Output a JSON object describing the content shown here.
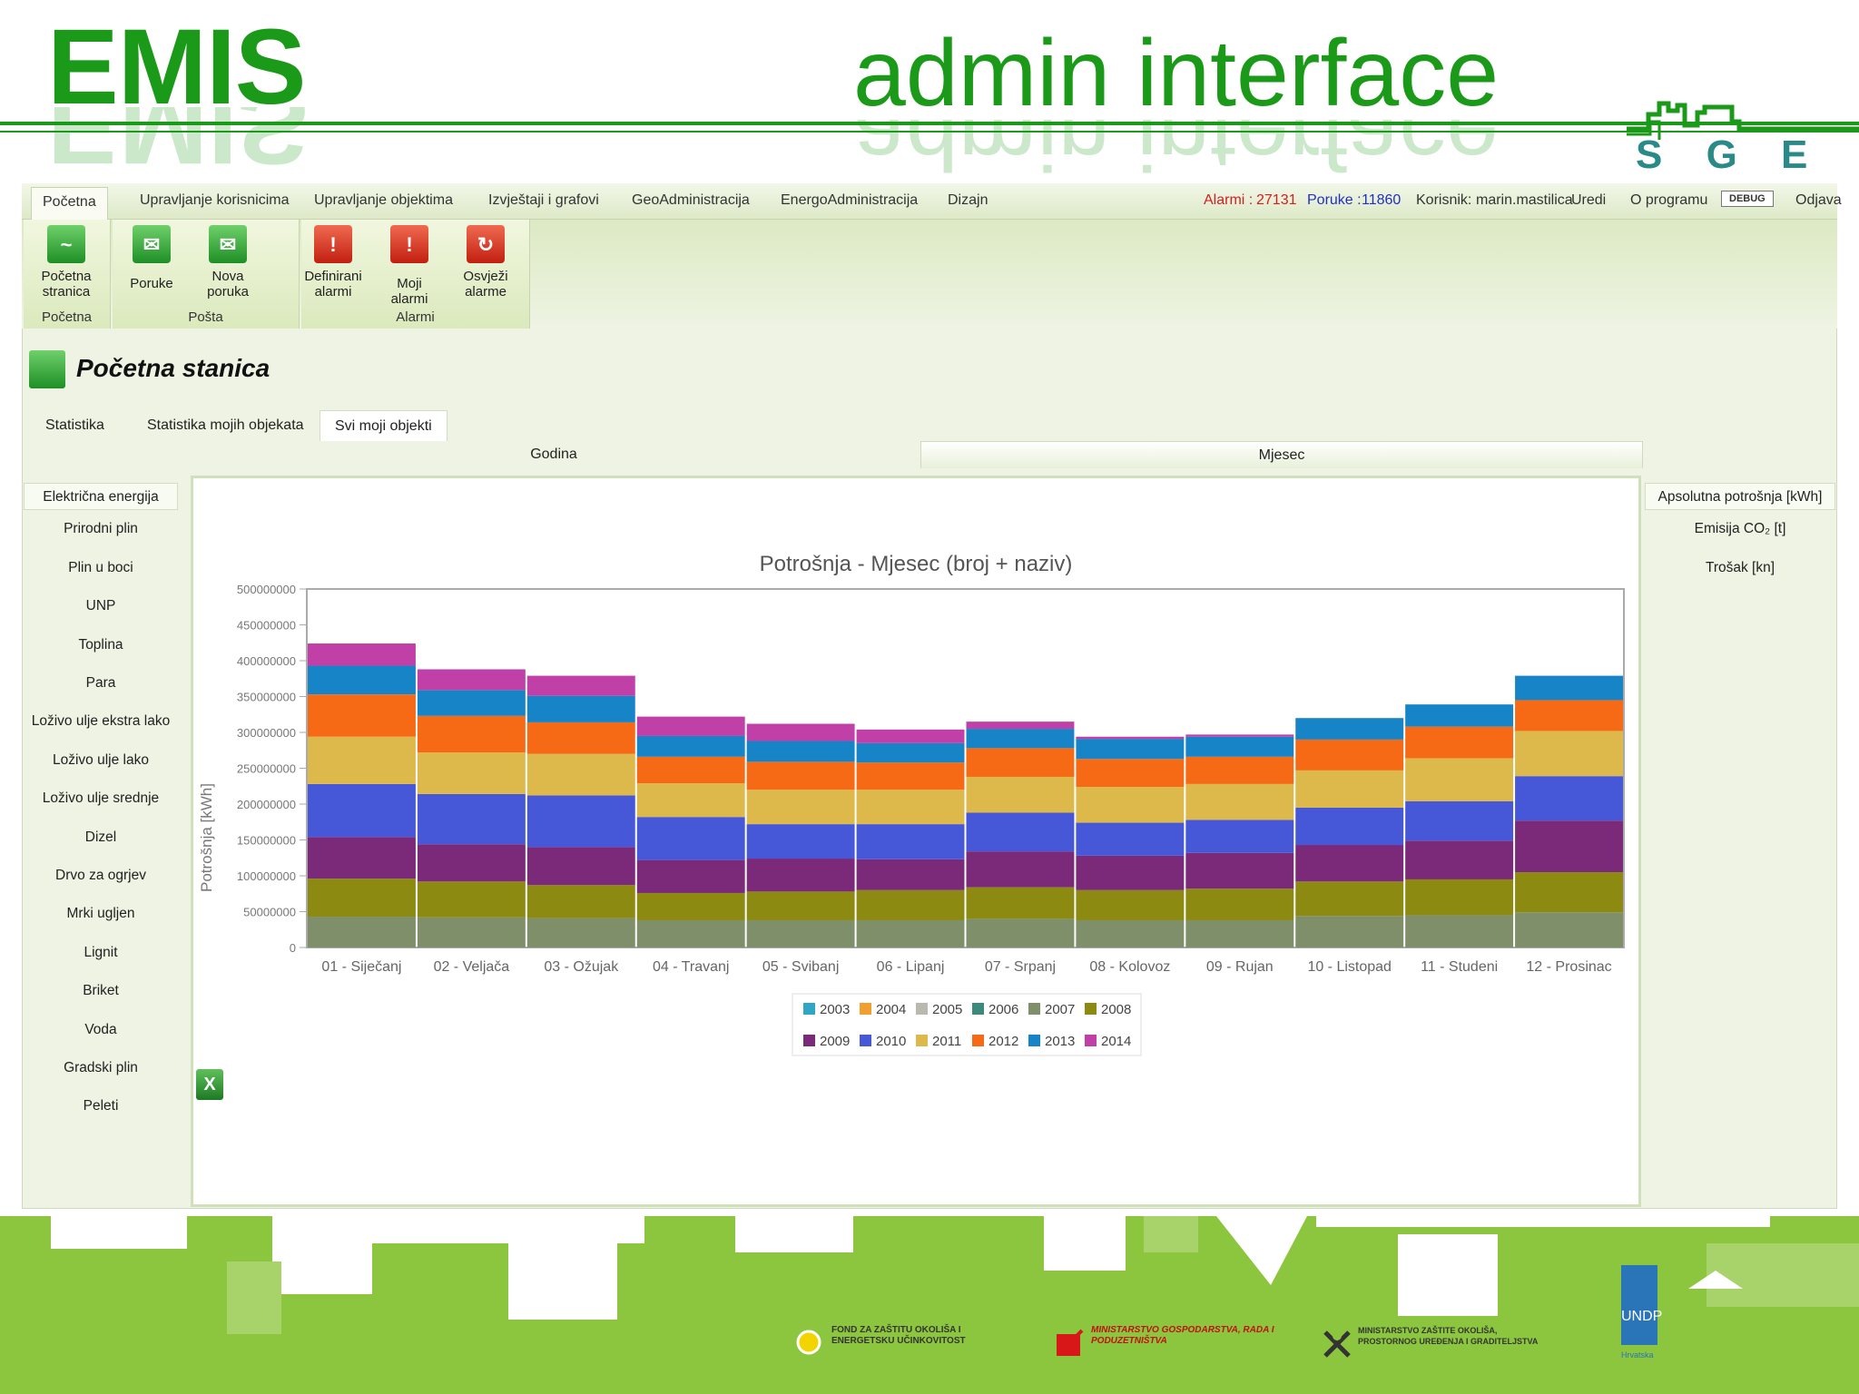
{
  "slide": {
    "title": "EMIS",
    "subtitle": "admin interface",
    "logo_text": "S G E"
  },
  "menubar": {
    "items": [
      "Početna",
      "Upravljanje korisnicima",
      "Upravljanje objektima",
      "Izvještaji i grafovi",
      "GeoAdministracija",
      "EnergoAdministracija",
      "Dizajn"
    ],
    "alarm_label": "Alarmi :",
    "alarm_count": "27131",
    "messages_label": "Poruke :",
    "messages_count": "11860",
    "user_label": "Korisnik:",
    "user_name": "marin.mastilica",
    "edit": "Uredi",
    "about": "O programu",
    "debug": "DEBUG",
    "logout": "Odjava"
  },
  "ribbon": {
    "groups": [
      {
        "label": "Početna",
        "buttons": [
          "Početna stranica"
        ]
      },
      {
        "label": "Pošta",
        "buttons": [
          "Poruke",
          "Nova poruka"
        ]
      },
      {
        "label": "Alarmi",
        "buttons": [
          "Definirani alarmi",
          "Moji alarmi",
          "Osvježi alarme"
        ]
      }
    ]
  },
  "page": {
    "title": "Početna stanica",
    "tabs": [
      "Statistika",
      "Statistika mojih objekata",
      "Svi moji objekti"
    ],
    "active_tab": "Svi moji objekti",
    "periods": [
      "Godina",
      "Mjesec"
    ],
    "active_period": "Mjesec"
  },
  "left_nav": [
    "Električna energija",
    "Prirodni plin",
    "Plin u boci",
    "UNP",
    "Toplina",
    "Para",
    "Loživo ulje ekstra lako",
    "Loživo ulje lako",
    "Loživo ulje srednje",
    "Dizel",
    "Drvo za ogrjev",
    "Mrki ugljen",
    "Lignit",
    "Briket",
    "Voda",
    "Gradski plin",
    "Peleti"
  ],
  "right_nav": [
    "Apsolutna potrošnja [kWh]",
    "Emisija CO₂ [t]",
    "Trošak [kn]"
  ],
  "chart_data": {
    "type": "bar",
    "stacked": true,
    "title": "Potrošnja - Mjesec (broj + naziv)",
    "ylabel": "Potrošnja [kWh]",
    "xlabel": "",
    "ylim": [
      0,
      500000000
    ],
    "yticks": [
      0,
      50000000,
      100000000,
      150000000,
      200000000,
      250000000,
      300000000,
      350000000,
      400000000,
      450000000,
      500000000
    ],
    "legend_position": "bottom",
    "categories": [
      "01 - Siječanj",
      "02 - Veljača",
      "03 - Ožujak",
      "04 - Travanj",
      "05 - Svibanj",
      "06 - Lipanj",
      "07 - Srpanj",
      "08 - Kolovoz",
      "09 - Rujan",
      "10 - Listopad",
      "11 - Studeni",
      "12 - Prosinac"
    ],
    "series": [
      {
        "name": "2003",
        "color": "#2fa6c4",
        "values": [
          0,
          0,
          0,
          0,
          0,
          0,
          0,
          0,
          0,
          0,
          0,
          0
        ]
      },
      {
        "name": "2004",
        "color": "#f0a030",
        "values": [
          0,
          0,
          0,
          0,
          0,
          0,
          0,
          0,
          0,
          0,
          0,
          0
        ]
      },
      {
        "name": "2005",
        "color": "#b9b9b0",
        "values": [
          0,
          0,
          0,
          0,
          0,
          0,
          0,
          0,
          0,
          0,
          0,
          0
        ]
      },
      {
        "name": "2006",
        "color": "#3c8a7c",
        "values": [
          0,
          0,
          0,
          0,
          0,
          0,
          0,
          0,
          0,
          0,
          0,
          0
        ]
      },
      {
        "name": "2007",
        "color": "#7f8f6a",
        "values": [
          43000000,
          42000000,
          41000000,
          38000000,
          38000000,
          38000000,
          40000000,
          38000000,
          38000000,
          44000000,
          45000000,
          49000000
        ]
      },
      {
        "name": "2008",
        "color": "#8d8a12",
        "values": [
          53000000,
          50000000,
          46000000,
          38000000,
          40000000,
          42000000,
          44000000,
          42000000,
          44000000,
          48000000,
          50000000,
          56000000
        ]
      },
      {
        "name": "2009",
        "color": "#7a2a78",
        "values": [
          58000000,
          52000000,
          53000000,
          46000000,
          46000000,
          43000000,
          50000000,
          48000000,
          50000000,
          51000000,
          54000000,
          72000000
        ]
      },
      {
        "name": "2010",
        "color": "#4658d8",
        "values": [
          74000000,
          70000000,
          72000000,
          60000000,
          48000000,
          49000000,
          54000000,
          46000000,
          46000000,
          52000000,
          55000000,
          62000000
        ]
      },
      {
        "name": "2011",
        "color": "#ddb84a",
        "values": [
          66000000,
          58000000,
          58000000,
          47000000,
          48000000,
          48000000,
          50000000,
          50000000,
          50000000,
          52000000,
          60000000,
          63000000
        ]
      },
      {
        "name": "2012",
        "color": "#f66a16",
        "values": [
          59000000,
          51000000,
          44000000,
          37000000,
          39000000,
          38000000,
          40000000,
          39000000,
          38000000,
          43000000,
          44000000,
          43000000
        ]
      },
      {
        "name": "2013",
        "color": "#1884c8",
        "values": [
          40000000,
          36000000,
          37000000,
          29000000,
          29000000,
          27000000,
          27000000,
          28000000,
          28000000,
          30000000,
          31000000,
          34000000
        ]
      },
      {
        "name": "2014",
        "color": "#c040a8",
        "values": [
          31000000,
          29000000,
          28000000,
          27000000,
          24000000,
          19000000,
          10000000,
          3000000,
          3000000,
          0,
          0,
          0
        ]
      }
    ]
  },
  "footer": {
    "logos": [
      "FOND ZA ZAŠTITU OKOLIŠA I ENERGETSKU UČINKOVITOST",
      "MINISTARSTVO GOSPODARSTVA, RADA I PODUZETNIŠTVA",
      "MINISTARSTVO ZAŠTITE OKOLIŠA, PROSTORNOG UREĐENJA I GRADITELJSTVA"
    ],
    "undp": "UNDP",
    "undp_country": "Hrvatska"
  }
}
